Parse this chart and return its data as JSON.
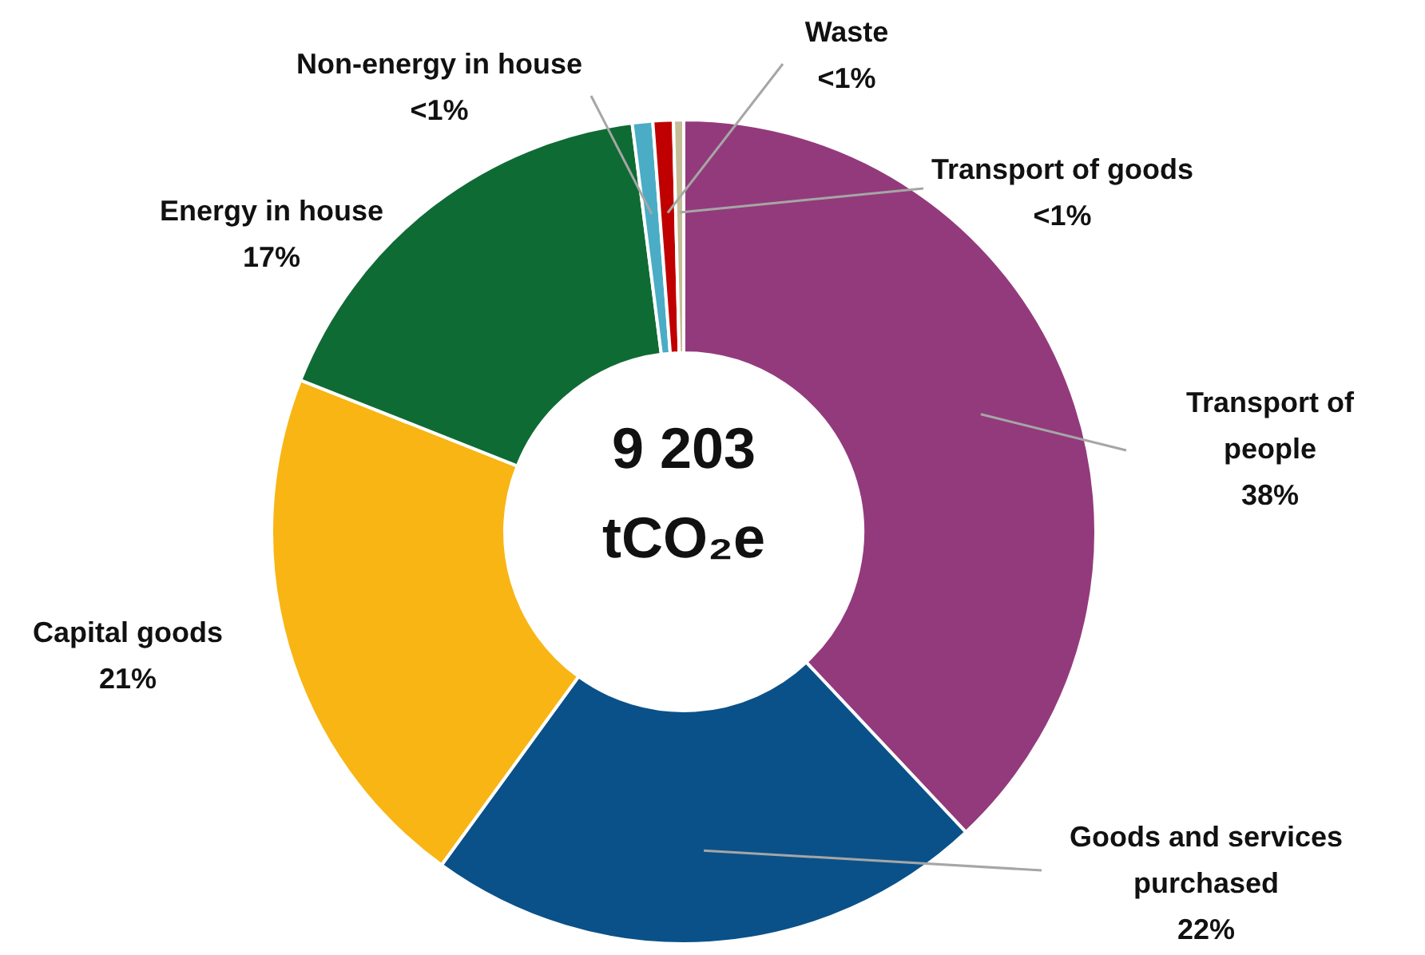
{
  "chart_data": {
    "type": "donut",
    "categories": [
      "Transport of people",
      "Goods and services purchased",
      "Capital goods",
      "Energy in house",
      "Non-energy in house",
      "Waste",
      "Transport of goods"
    ],
    "values": [
      38,
      22,
      21,
      17,
      0.8,
      0.8,
      0.4
    ],
    "value_labels": [
      "38%",
      "22%",
      "21%",
      "17%",
      "<1%",
      "<1%",
      "<1%"
    ],
    "colors": [
      "#933a7c",
      "#0a5189",
      "#f8b514",
      "#0f6b34",
      "#4bacc6",
      "#c00000",
      "#c4bd97"
    ],
    "annotations": [
      "9 203",
      "tCO₂e"
    ]
  }
}
